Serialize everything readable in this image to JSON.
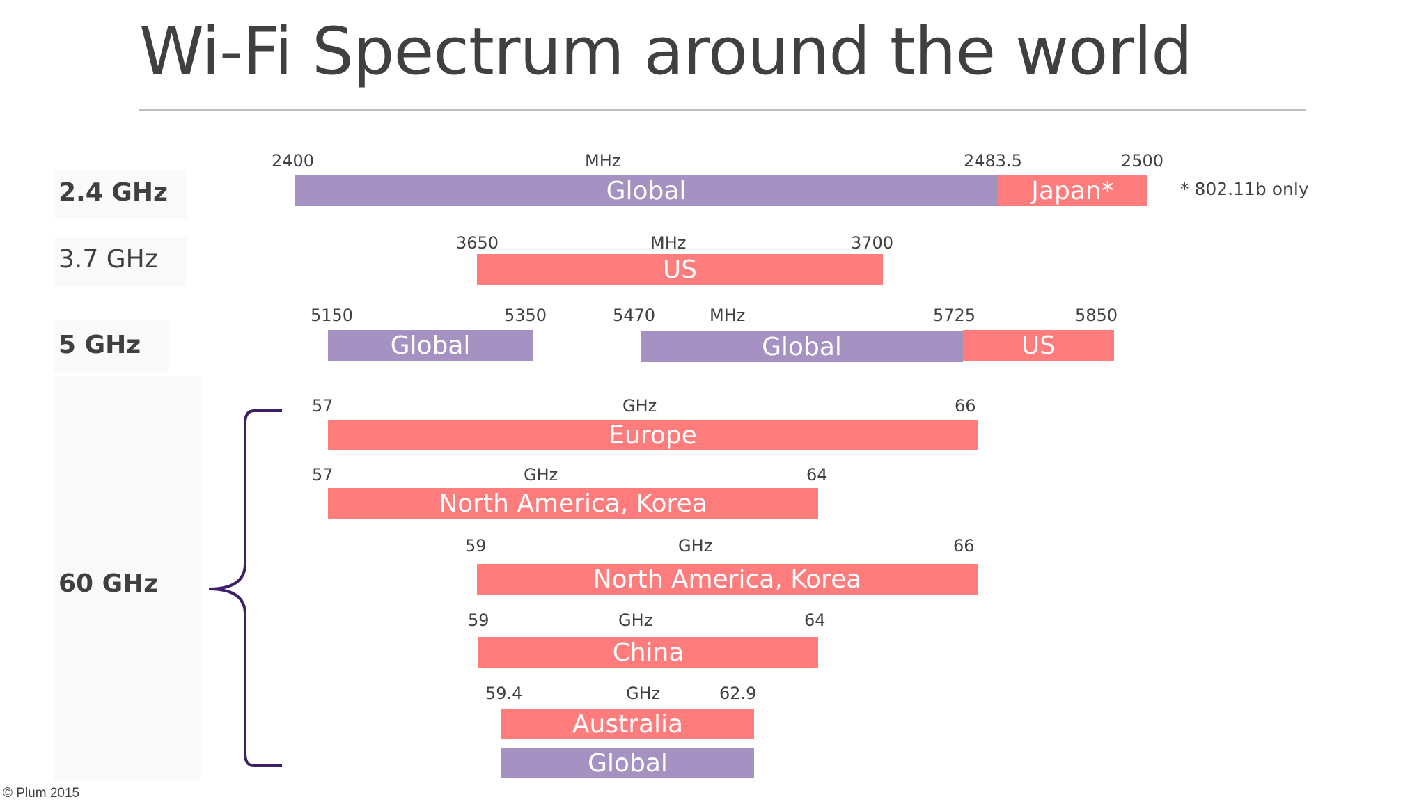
{
  "slide": {
    "title": "Wi-Fi Spectrum around the world",
    "copyright": "© Plum 2015",
    "note_24": "* 802.11b only"
  },
  "colors": {
    "global": "#a692c2",
    "regional": "#ff7c7c",
    "text": "#404040",
    "brace": "#3c1f66"
  },
  "icons": {
    "brace": "left-curly-brace"
  },
  "chart_data": {
    "type": "bar",
    "title": "Wi-Fi Spectrum around the world",
    "bands": [
      {
        "label": "2.4 GHz",
        "unit": "MHz",
        "ticks": [
          "2400",
          "2483.5",
          "2500"
        ],
        "segments": [
          {
            "name": "Global",
            "start": 2400,
            "end": 2483.5,
            "kind": "global"
          },
          {
            "name": "Japan*",
            "start": 2483.5,
            "end": 2500,
            "kind": "regional"
          }
        ]
      },
      {
        "label": "3.7 GHz",
        "unit": "MHz",
        "ticks": [
          "3650",
          "3700"
        ],
        "segments": [
          {
            "name": "US",
            "start": 3650,
            "end": 3700,
            "kind": "regional"
          }
        ]
      },
      {
        "label": "5 GHz",
        "unit": "MHz",
        "ticks": [
          "5150",
          "5350",
          "5470",
          "5725",
          "5850"
        ],
        "segments": [
          {
            "name": "Global",
            "start": 5150,
            "end": 5350,
            "kind": "global"
          },
          {
            "name": "Global",
            "start": 5470,
            "end": 5725,
            "kind": "global"
          },
          {
            "name": "US",
            "start": 5725,
            "end": 5850,
            "kind": "regional"
          }
        ]
      },
      {
        "label": "60 GHz",
        "unit": "GHz",
        "allocations": [
          {
            "name": "Europe",
            "start": 57,
            "end": 66,
            "start_label": "57",
            "end_label": "66",
            "kind": "regional"
          },
          {
            "name": "North America, Korea",
            "start": 57,
            "end": 64,
            "start_label": "57",
            "end_label": "64",
            "kind": "regional"
          },
          {
            "name": "North America, Korea",
            "start": 59,
            "end": 66,
            "start_label": "59",
            "end_label": "66",
            "kind": "regional"
          },
          {
            "name": "China",
            "start": 59,
            "end": 64,
            "start_label": "59",
            "end_label": "64",
            "kind": "regional"
          },
          {
            "name": "Australia",
            "start": 59.4,
            "end": 62.9,
            "start_label": "59.4",
            "end_label": "62.9",
            "kind": "regional"
          },
          {
            "name": "Global",
            "start": 59.4,
            "end": 62.9,
            "kind": "global"
          }
        ]
      }
    ]
  }
}
